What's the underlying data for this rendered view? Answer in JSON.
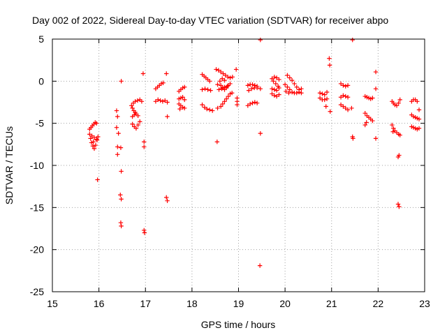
{
  "chart_data": {
    "type": "scatter",
    "title": "Day 002 of 2022, Sidereal Day-to-day VTEC variation (SDTVAR) for receiver abpo",
    "xlabel": "GPS time / hours",
    "ylabel": "SDTVAR / TECUs",
    "xlim": [
      15,
      23
    ],
    "ylim": [
      -25,
      5
    ],
    "xticks": [
      "15",
      "16",
      "17",
      "18",
      "19",
      "20",
      "21",
      "22",
      "23"
    ],
    "yticks": [
      "5",
      "0",
      "-5",
      "-10",
      "-15",
      "-20",
      "-25"
    ],
    "grid": true,
    "marker": "+",
    "color": "#ff0000",
    "series": [
      {
        "name": "SDTVAR",
        "points": [
          [
            15.8,
            -5.7
          ],
          [
            15.83,
            -5.5
          ],
          [
            15.86,
            -5.3
          ],
          [
            15.89,
            -5.1
          ],
          [
            15.92,
            -4.9
          ],
          [
            15.95,
            -5.0
          ],
          [
            15.8,
            -6.3
          ],
          [
            15.82,
            -6.8
          ],
          [
            15.84,
            -7.3
          ],
          [
            15.87,
            -7.7
          ],
          [
            15.9,
            -8.0
          ],
          [
            15.93,
            -7.6
          ],
          [
            15.96,
            -7.0
          ],
          [
            15.98,
            -6.6
          ],
          [
            15.85,
            -6.5
          ],
          [
            15.9,
            -6.7
          ],
          [
            15.95,
            -6.9
          ],
          [
            15.88,
            -7.2
          ],
          [
            15.97,
            -11.7
          ],
          [
            16.38,
            -3.5
          ],
          [
            16.4,
            -4.2
          ],
          [
            16.38,
            -5.5
          ],
          [
            16.42,
            -6.2
          ],
          [
            16.4,
            -7.8
          ],
          [
            16.47,
            -7.9
          ],
          [
            16.4,
            -8.7
          ],
          [
            16.48,
            0.0
          ],
          [
            16.48,
            -10.7
          ],
          [
            16.46,
            -13.5
          ],
          [
            16.48,
            -14.0
          ],
          [
            16.47,
            -16.8
          ],
          [
            16.48,
            -17.2
          ],
          [
            16.7,
            -2.9
          ],
          [
            16.74,
            -2.6
          ],
          [
            16.78,
            -2.4
          ],
          [
            16.83,
            -2.3
          ],
          [
            16.88,
            -2.2
          ],
          [
            16.92,
            -2.4
          ],
          [
            16.72,
            -3.2
          ],
          [
            16.75,
            -3.5
          ],
          [
            16.78,
            -3.7
          ],
          [
            16.72,
            -4.2
          ],
          [
            16.76,
            -4.0
          ],
          [
            16.8,
            -3.9
          ],
          [
            16.84,
            -4.1
          ],
          [
            16.72,
            -5.1
          ],
          [
            16.76,
            -5.4
          ],
          [
            16.8,
            -5.6
          ],
          [
            16.84,
            -5.2
          ],
          [
            16.88,
            -4.8
          ],
          [
            16.95,
            0.9
          ],
          [
            16.97,
            -7.2
          ],
          [
            16.97,
            -7.8
          ],
          [
            16.97,
            -17.7
          ],
          [
            16.98,
            -18.0
          ],
          [
            17.22,
            -0.9
          ],
          [
            17.26,
            -0.7
          ],
          [
            17.3,
            -0.5
          ],
          [
            17.34,
            -0.3
          ],
          [
            17.38,
            -0.2
          ],
          [
            17.22,
            -2.4
          ],
          [
            17.27,
            -2.2
          ],
          [
            17.32,
            -2.3
          ],
          [
            17.37,
            -2.4
          ],
          [
            17.42,
            -2.3
          ],
          [
            17.47,
            -2.5
          ],
          [
            17.45,
            0.9
          ],
          [
            17.47,
            -4.2
          ],
          [
            17.45,
            -13.8
          ],
          [
            17.47,
            -14.2
          ],
          [
            17.72,
            -1.2
          ],
          [
            17.76,
            -1.0
          ],
          [
            17.8,
            -0.8
          ],
          [
            17.84,
            -0.7
          ],
          [
            17.72,
            -2.1
          ],
          [
            17.76,
            -2.0
          ],
          [
            17.8,
            -1.9
          ],
          [
            17.84,
            -2.2
          ],
          [
            17.72,
            -2.7
          ],
          [
            17.76,
            -2.9
          ],
          [
            17.8,
            -3.1
          ],
          [
            17.84,
            -3.2
          ],
          [
            17.74,
            -3.3
          ],
          [
            18.22,
            0.8
          ],
          [
            18.26,
            0.6
          ],
          [
            18.3,
            0.4
          ],
          [
            18.34,
            0.2
          ],
          [
            18.38,
            0.0
          ],
          [
            18.22,
            -1.0
          ],
          [
            18.28,
            -0.9
          ],
          [
            18.34,
            -1.0
          ],
          [
            18.4,
            -1.1
          ],
          [
            18.22,
            -2.8
          ],
          [
            18.27,
            -3.1
          ],
          [
            18.32,
            -3.3
          ],
          [
            18.38,
            -3.4
          ],
          [
            18.44,
            -3.5
          ],
          [
            18.54,
            -7.2
          ],
          [
            18.52,
            1.4
          ],
          [
            18.57,
            1.3
          ],
          [
            18.62,
            1.1
          ],
          [
            18.67,
            0.9
          ],
          [
            18.72,
            0.7
          ],
          [
            18.77,
            0.5
          ],
          [
            18.82,
            0.4
          ],
          [
            18.87,
            0.5
          ],
          [
            18.55,
            -0.4
          ],
          [
            18.6,
            0.0
          ],
          [
            18.65,
            0.3
          ],
          [
            18.7,
            0.1
          ],
          [
            18.62,
            -0.5
          ],
          [
            18.66,
            -0.8
          ],
          [
            18.7,
            -1.0
          ],
          [
            18.74,
            -0.8
          ],
          [
            18.78,
            -0.5
          ],
          [
            18.82,
            -0.3
          ],
          [
            18.58,
            -1.0
          ],
          [
            18.64,
            -0.9
          ],
          [
            18.7,
            -0.7
          ],
          [
            18.76,
            -0.6
          ],
          [
            18.62,
            -3.0
          ],
          [
            18.66,
            -2.7
          ],
          [
            18.7,
            -2.4
          ],
          [
            18.74,
            -2.1
          ],
          [
            18.78,
            -1.8
          ],
          [
            18.82,
            -1.5
          ],
          [
            18.86,
            -1.4
          ],
          [
            18.55,
            -3.2
          ],
          [
            18.95,
            1.4
          ],
          [
            18.97,
            -2.0
          ],
          [
            18.97,
            -2.4
          ],
          [
            18.97,
            -2.8
          ],
          [
            19.2,
            -0.5
          ],
          [
            19.25,
            -0.4
          ],
          [
            19.3,
            -0.4
          ],
          [
            19.35,
            -0.5
          ],
          [
            19.4,
            -0.6
          ],
          [
            19.2,
            -2.9
          ],
          [
            19.25,
            -2.7
          ],
          [
            19.3,
            -2.6
          ],
          [
            19.35,
            -2.5
          ],
          [
            19.4,
            -2.6
          ],
          [
            19.22,
            -1.1
          ],
          [
            19.28,
            -0.9
          ],
          [
            19.34,
            -0.8
          ],
          [
            19.4,
            -0.8
          ],
          [
            19.47,
            4.9
          ],
          [
            19.47,
            -0.9
          ],
          [
            19.47,
            -6.2
          ],
          [
            19.46,
            -21.9
          ],
          [
            19.72,
            0.3
          ],
          [
            19.77,
            0.5
          ],
          [
            19.82,
            0.4
          ],
          [
            19.87,
            0.2
          ],
          [
            19.72,
            -0.9
          ],
          [
            19.77,
            -1.0
          ],
          [
            19.82,
            -1.1
          ],
          [
            19.87,
            -0.8
          ],
          [
            19.72,
            -1.5
          ],
          [
            19.77,
            -1.7
          ],
          [
            19.82,
            -1.8
          ],
          [
            19.87,
            -1.6
          ],
          [
            19.75,
            0.0
          ],
          [
            19.8,
            -0.3
          ],
          [
            19.85,
            -0.6
          ],
          [
            20.05,
            0.7
          ],
          [
            20.1,
            0.4
          ],
          [
            20.15,
            0.1
          ],
          [
            20.2,
            -0.3
          ],
          [
            20.25,
            -0.7
          ],
          [
            20.3,
            -1.0
          ],
          [
            20.35,
            -0.9
          ],
          [
            20.0,
            -0.4
          ],
          [
            20.05,
            -0.7
          ],
          [
            20.1,
            -1.0
          ],
          [
            20.15,
            -1.3
          ],
          [
            20.2,
            -1.4
          ],
          [
            20.25,
            -1.4
          ],
          [
            20.3,
            -1.3
          ],
          [
            20.35,
            -1.4
          ],
          [
            20.02,
            -1.2
          ],
          [
            20.08,
            -1.4
          ],
          [
            20.75,
            -1.4
          ],
          [
            20.8,
            -1.5
          ],
          [
            20.85,
            -1.6
          ],
          [
            20.9,
            -1.3
          ],
          [
            20.75,
            -2.0
          ],
          [
            20.8,
            -2.2
          ],
          [
            20.85,
            -2.2
          ],
          [
            20.9,
            -2.1
          ],
          [
            20.88,
            -3.0
          ],
          [
            20.95,
            2.7
          ],
          [
            20.96,
            1.9
          ],
          [
            20.97,
            -3.6
          ],
          [
            21.2,
            -0.3
          ],
          [
            21.25,
            -0.5
          ],
          [
            21.3,
            -0.6
          ],
          [
            21.35,
            -0.5
          ],
          [
            21.2,
            -1.9
          ],
          [
            21.25,
            -1.7
          ],
          [
            21.3,
            -1.8
          ],
          [
            21.35,
            -1.9
          ],
          [
            21.2,
            -2.8
          ],
          [
            21.25,
            -3.0
          ],
          [
            21.3,
            -3.2
          ],
          [
            21.35,
            -3.4
          ],
          [
            21.45,
            4.9
          ],
          [
            21.43,
            -3.2
          ],
          [
            21.45,
            -6.6
          ],
          [
            21.46,
            -6.8
          ],
          [
            21.72,
            -1.8
          ],
          [
            21.76,
            -1.9
          ],
          [
            21.8,
            -2.0
          ],
          [
            21.84,
            -2.1
          ],
          [
            21.88,
            -2.0
          ],
          [
            21.72,
            -3.8
          ],
          [
            21.76,
            -4.1
          ],
          [
            21.8,
            -4.3
          ],
          [
            21.84,
            -4.5
          ],
          [
            21.88,
            -4.7
          ],
          [
            21.75,
            -4.9
          ],
          [
            21.72,
            -5.2
          ],
          [
            21.95,
            1.1
          ],
          [
            21.95,
            -0.9
          ],
          [
            21.95,
            -6.8
          ],
          [
            22.3,
            -2.4
          ],
          [
            22.33,
            -2.6
          ],
          [
            22.36,
            -2.8
          ],
          [
            22.4,
            -2.9
          ],
          [
            22.44,
            -2.6
          ],
          [
            22.47,
            -2.2
          ],
          [
            22.3,
            -5.2
          ],
          [
            22.33,
            -5.6
          ],
          [
            22.36,
            -5.9
          ],
          [
            22.4,
            -6.1
          ],
          [
            22.44,
            -6.3
          ],
          [
            22.47,
            -6.4
          ],
          [
            22.32,
            -6.0
          ],
          [
            22.43,
            -9.0
          ],
          [
            22.45,
            -8.8
          ],
          [
            22.43,
            -14.6
          ],
          [
            22.45,
            -14.9
          ],
          [
            22.72,
            -2.4
          ],
          [
            22.76,
            -2.2
          ],
          [
            22.8,
            -2.2
          ],
          [
            22.84,
            -2.4
          ],
          [
            22.72,
            -4.0
          ],
          [
            22.76,
            -4.2
          ],
          [
            22.8,
            -4.3
          ],
          [
            22.84,
            -4.4
          ],
          [
            22.88,
            -4.5
          ],
          [
            22.72,
            -5.4
          ],
          [
            22.76,
            -5.5
          ],
          [
            22.8,
            -5.6
          ],
          [
            22.84,
            -5.7
          ],
          [
            22.88,
            -5.6
          ],
          [
            22.88,
            -3.4
          ]
        ]
      }
    ]
  }
}
